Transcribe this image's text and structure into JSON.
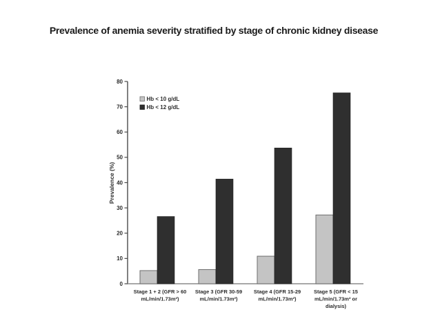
{
  "slide": {
    "title": "Prevalence of anemia severity stratified by stage of  chronic kidney disease"
  },
  "chart_data": {
    "type": "bar",
    "title": "Prevalence of anemia severity stratified by stage of  chronic kidney disease",
    "xlabel": "",
    "ylabel": "Prevalence (%)",
    "ylim": [
      0,
      80
    ],
    "ytick_step": 10,
    "grid": false,
    "legend_position": "top-left-inside",
    "background_color": "#ffffff",
    "categories": [
      "Stage 1 + 2 (GFR > 60\nmL/min/1.73m²)",
      "Stage 3 (GFR 30-59\nmL/min/1.73m²)",
      "Stage 4 (GFR 15-29\nmL/min/1.73m²)",
      "Stage 5 (GFR < 15\nmL/min/1.73m² or\ndialysis)"
    ],
    "series": [
      {
        "name": "Hb < 10 g/dL",
        "color": "#c4c4c4",
        "border": "#6e6e6e",
        "values": [
          5.2,
          5.6,
          10.9,
          27.2
        ]
      },
      {
        "name": "Hb < 12 g/dL",
        "color": "#2f2f2f",
        "border": "#1f1f1f",
        "values": [
          26.6,
          41.4,
          53.7,
          75.5
        ]
      }
    ]
  }
}
